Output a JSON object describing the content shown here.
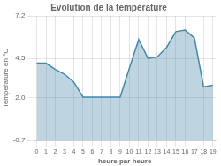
{
  "chart_data": {
    "type": "area",
    "title": "Evolution de la température",
    "x_label": "heure par heure",
    "y_label": "Température en °C",
    "x": [
      0,
      1,
      2,
      3,
      4,
      5,
      6,
      7,
      8,
      9,
      10,
      11,
      12,
      13,
      14,
      15,
      16,
      17,
      18,
      19
    ],
    "values": [
      4.2,
      4.2,
      3.8,
      3.5,
      3.0,
      2.05,
      2.05,
      2.05,
      2.05,
      2.05,
      3.9,
      5.7,
      4.5,
      4.6,
      5.2,
      6.2,
      6.3,
      5.8,
      2.7,
      2.8
    ],
    "color": "#4488aa",
    "xlim": [
      -0.3,
      19.3
    ],
    "xticks": [
      0,
      1,
      2,
      3,
      4,
      5,
      6,
      7,
      8,
      9,
      10,
      11,
      12,
      13,
      14,
      15,
      16,
      17,
      18,
      19
    ],
    "ylim": [
      -0.7,
      7.2
    ],
    "yticks": [
      -0.7,
      {
        "value": 2.0,
        "label": "2.0"
      },
      4.5,
      7.2
    ],
    "grid": true
  }
}
